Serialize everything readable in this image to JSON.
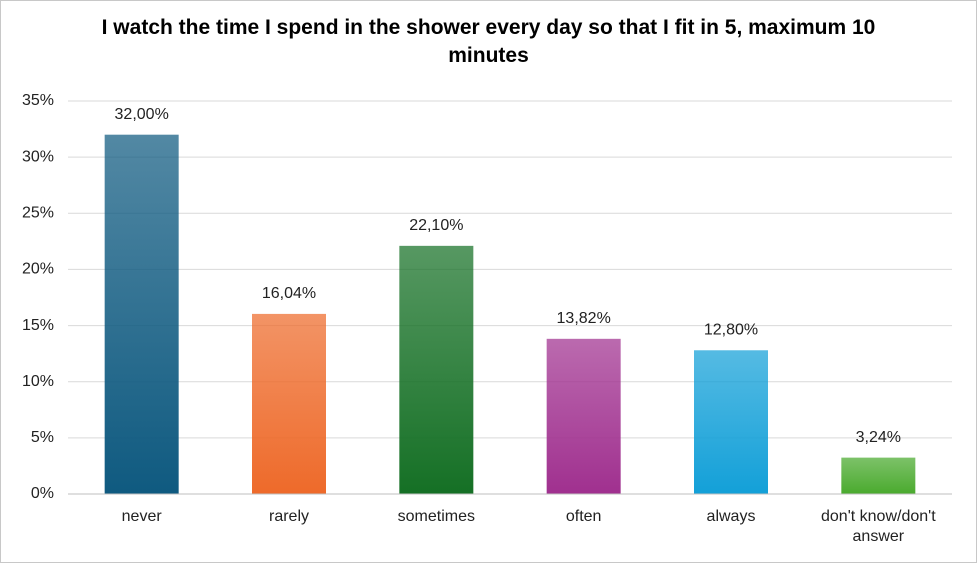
{
  "chart_data": {
    "type": "bar",
    "title": "I watch the time I spend in the shower every day so that I fit in 5, maximum  10 minutes",
    "categories": [
      "never",
      "rarely",
      "sometimes",
      "often",
      "always",
      "don't know/don't answer"
    ],
    "values": [
      32,
      16.04,
      22.1,
      13.82,
      12.8,
      3.24
    ],
    "value_labels": [
      "32,00%",
      "16,04%",
      "22,10%",
      "13,82%",
      "12,80%",
      "3,24%"
    ],
    "colors": [
      "#0f5a80",
      "#ee6a2a",
      "#157025",
      "#a0308f",
      "#13a0d8",
      "#4aaa2e"
    ],
    "ylim": [
      0,
      35
    ],
    "yticks": [
      {
        "value": 0,
        "label": "0%"
      },
      {
        "value": 5,
        "label": "5%"
      },
      {
        "value": 10,
        "label": "10%"
      },
      {
        "value": 15,
        "label": "15%"
      },
      {
        "value": 20,
        "label": "20%"
      },
      {
        "value": 25,
        "label": "25%"
      },
      {
        "value": 30,
        "label": "30%"
      },
      {
        "value": 35,
        "label": "35%"
      }
    ],
    "grid": true
  }
}
